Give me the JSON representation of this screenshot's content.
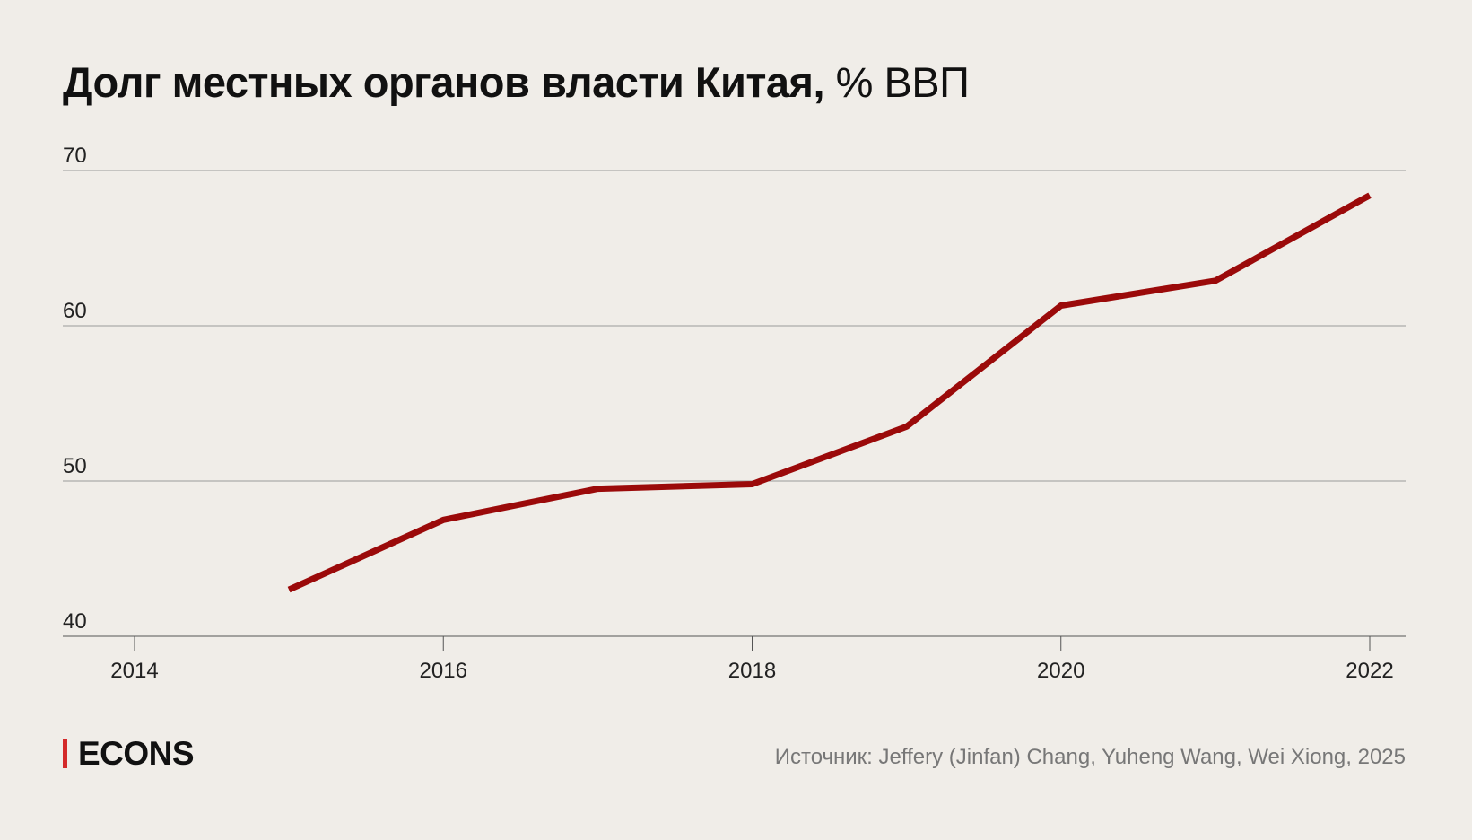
{
  "title": {
    "bold": "Долг местных органов власти Китая,",
    "unit": "% ВВП"
  },
  "chart_data": {
    "type": "line",
    "title": "Долг местных органов власти Китая, % ВВП",
    "xlabel": "",
    "ylabel": "",
    "x": [
      2015,
      2016,
      2017,
      2018,
      2019,
      2020,
      2021,
      2022
    ],
    "series": [
      {
        "values": [
          43.0,
          47.5,
          49.5,
          49.8,
          53.5,
          61.3,
          62.9,
          68.4
        ]
      }
    ],
    "xlim": [
      2013.55,
      2022.0
    ],
    "ylim": [
      40,
      70
    ],
    "x_ticks": [
      2014,
      2016,
      2018,
      2020,
      2022
    ],
    "y_ticks": [
      40,
      50,
      60,
      70
    ],
    "grid": "horizontal",
    "line_color": "#9b0a0a"
  },
  "logo": {
    "text": "ECONS",
    "accent_color": "#d42a2a"
  },
  "source": "Источник: Jeffery (Jinfan) Chang, Yuheng Wang, Wei Xiong, 2025"
}
